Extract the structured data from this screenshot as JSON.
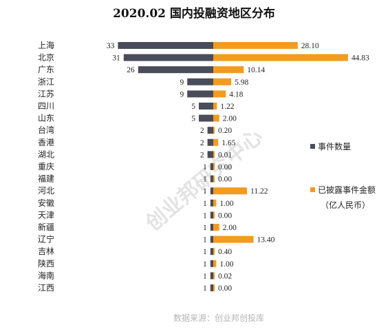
{
  "chart_data": {
    "type": "bar",
    "title": "2020.02 国内投融资地区分布",
    "categories": [
      "上海",
      "北京",
      "广东",
      "浙江",
      "江苏",
      "四川",
      "山东",
      "台湾",
      "香港",
      "湖北",
      "重庆",
      "福建",
      "河北",
      "安徽",
      "天津",
      "新疆",
      "辽宁",
      "吉林",
      "陕西",
      "海南",
      "江西"
    ],
    "series": [
      {
        "name": "事件数量",
        "values": [
          33,
          31,
          26,
          9,
          9,
          5,
          5,
          2,
          2,
          2,
          1,
          1,
          1,
          1,
          1,
          1,
          1,
          1,
          1,
          1,
          1
        ],
        "labels": [
          "33",
          "31",
          "26",
          "9",
          "9",
          "5",
          "5",
          "2",
          "2",
          "2",
          "1",
          "1",
          "1",
          "1",
          "1",
          "1",
          "1",
          "1",
          "1",
          "1",
          "1"
        ],
        "color": "#4a4c59"
      },
      {
        "name": "已披露事件金额",
        "unit": "（亿人民币）",
        "values": [
          28.1,
          44.83,
          10.14,
          5.98,
          4.18,
          1.22,
          2.0,
          0.2,
          1.65,
          0.01,
          0.0,
          0.0,
          11.22,
          1.0,
          0.0,
          2.0,
          13.4,
          0.4,
          1.0,
          0.02,
          0.0
        ],
        "labels": [
          "28.10",
          "44.83",
          "10.14",
          "5.98",
          "4.18",
          "1.22",
          "2.00",
          "0.20",
          "1.65",
          "0.01",
          "0.00",
          "0.00",
          "11.22",
          "1.00",
          "0.00",
          "2.00",
          "13.40",
          "0.40",
          "1.00",
          "0.02",
          "0.00"
        ],
        "color": "#f39b1f"
      }
    ],
    "legend_position": "right",
    "grid": false
  },
  "watermark": "创业邦研究中心",
  "source": "数据来源：创业邦创投库"
}
